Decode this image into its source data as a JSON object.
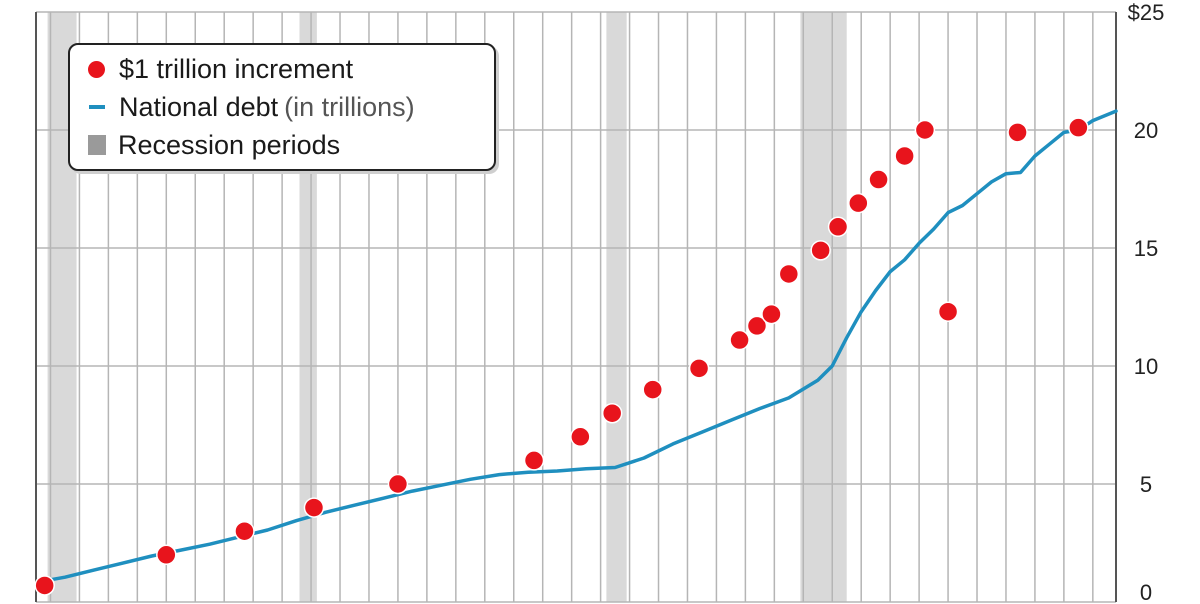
{
  "chart_data": {
    "type": "line",
    "title": "",
    "xlabel": "",
    "ylabel": "",
    "ylim": [
      0,
      25
    ],
    "y_ticks": [
      0,
      5,
      10,
      15,
      20,
      25
    ],
    "y_tick_labels": [
      "0",
      "5",
      "10",
      "15",
      "20",
      "$25"
    ],
    "y_axis_side": "right",
    "grid": true,
    "legend_position": "top-left",
    "legend": {
      "increment": "$1 trillion increment",
      "debt": "National debt",
      "debt_unit": "(in trillions)",
      "recession": "Recession periods"
    },
    "colors": {
      "increment": "#e8141c",
      "debt": "#1f8fbf",
      "recession": "#9a9a9a",
      "grid": "#b5b5b5"
    },
    "x_range": [
      1981.5,
      2018.8
    ],
    "x_gridlines": [
      1982,
      1983,
      1984,
      1985,
      1986,
      1987,
      1988,
      1989,
      1990,
      1991,
      1992,
      1993,
      1994,
      1995,
      1996,
      1997,
      1998,
      1999,
      2000,
      2001,
      2002,
      2003,
      2004,
      2005,
      2006,
      2007,
      2008,
      2009,
      2010,
      2011,
      2012,
      2013,
      2014,
      2015,
      2016,
      2017,
      2018
    ],
    "recession_periods": [
      [
        1981.9,
        1982.9
      ],
      [
        1990.6,
        1991.2
      ],
      [
        2001.2,
        2001.9
      ],
      [
        2007.9,
        2009.5
      ]
    ],
    "series": [
      {
        "name": "National debt",
        "x": [
          1981.8,
          1982.5,
          1983.5,
          1984.5,
          1985.5,
          1986.5,
          1987.5,
          1988.5,
          1989.5,
          1990.5,
          1991.5,
          1992.5,
          1993.5,
          1994.5,
          1995.5,
          1996.5,
          1997.5,
          1998.5,
          1999.5,
          2000.5,
          2001.5,
          2002.5,
          2003.5,
          2004.5,
          2005.5,
          2006.5,
          2007.5,
          2008.5,
          2009.0,
          2009.5,
          2010.0,
          2010.5,
          2011.0,
          2011.5,
          2012.0,
          2012.5,
          2013.0,
          2013.5,
          2014.0,
          2014.5,
          2015.0,
          2015.5,
          2016.0,
          2016.5,
          2017.0,
          2017.5,
          2018.0,
          2018.8
        ],
        "y": [
          0.9,
          1.05,
          1.35,
          1.65,
          1.95,
          2.2,
          2.45,
          2.75,
          3.05,
          3.45,
          3.8,
          4.1,
          4.4,
          4.7,
          4.95,
          5.2,
          5.4,
          5.5,
          5.55,
          5.65,
          5.7,
          6.1,
          6.7,
          7.2,
          7.7,
          8.2,
          8.65,
          9.4,
          10.0,
          11.2,
          12.3,
          13.2,
          14.0,
          14.5,
          15.2,
          15.8,
          16.5,
          16.8,
          17.3,
          17.8,
          18.15,
          18.2,
          18.9,
          19.4,
          19.9,
          20.0,
          20.4,
          20.8
        ]
      },
      {
        "name": "$1 trillion increment",
        "x": [
          1981.8,
          1986.0,
          1988.7,
          1991.1,
          1994.0,
          1998.7,
          2000.3,
          2001.4,
          2002.8,
          2004.4,
          2005.8,
          2006.4,
          2006.9,
          2007.5,
          2008.6,
          2009.2,
          2009.9,
          2010.6,
          2011.5,
          2012.2,
          2013.0,
          2015.4,
          2017.5
        ],
        "y": [
          0.7,
          2.0,
          3.0,
          4.0,
          5.0,
          6.0,
          7.0,
          8.0,
          9.0,
          9.9,
          11.1,
          11.7,
          12.2,
          13.9,
          14.9,
          15.9,
          16.9,
          17.9,
          18.9,
          20.0,
          12.3,
          19.9,
          20.1
        ]
      }
    ]
  }
}
